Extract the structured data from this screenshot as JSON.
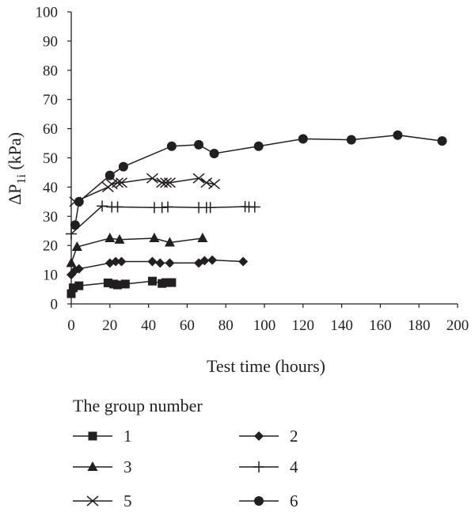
{
  "chart_data": {
    "type": "line",
    "xlabel": "Test time (hours)",
    "ylabel_main": "ΔP",
    "ylabel_sub": "1i",
    "ylabel_unit": " (kPa)",
    "xlim": [
      0,
      200
    ],
    "ylim": [
      0,
      100
    ],
    "xticks": [
      0,
      20,
      40,
      60,
      80,
      100,
      120,
      140,
      160,
      180,
      200
    ],
    "yticks": [
      0,
      10,
      20,
      30,
      40,
      50,
      60,
      70,
      80,
      90,
      100
    ],
    "grid": false,
    "legend_title": "The group number",
    "legend_position": "bottom",
    "series": [
      {
        "name": "1",
        "marker": "square",
        "x": [
          0,
          1,
          4,
          19,
          22,
          24,
          28,
          42,
          47,
          49,
          52
        ],
        "y": [
          3.5,
          5.5,
          6.2,
          7.2,
          6.8,
          6.5,
          6.8,
          7.8,
          7,
          7.3,
          7.3
        ]
      },
      {
        "name": "2",
        "marker": "diamond",
        "x": [
          0,
          2,
          4,
          20,
          23,
          26,
          42,
          46,
          51,
          66,
          69,
          73,
          89
        ],
        "y": [
          10,
          11.5,
          12,
          14,
          14.5,
          14.5,
          14.5,
          14,
          14,
          14,
          14.8,
          15,
          14.5
        ]
      },
      {
        "name": "3",
        "marker": "triangle",
        "x": [
          0,
          3,
          20,
          25,
          43,
          51,
          68
        ],
        "y": [
          14,
          19.5,
          22.5,
          22,
          22.5,
          21,
          22.5
        ]
      },
      {
        "name": "4",
        "marker": "plus",
        "x": [
          0,
          16,
          21,
          24,
          43,
          47,
          50,
          66,
          70,
          72,
          90,
          92,
          95
        ],
        "y": [
          24,
          33.5,
          33.2,
          33.2,
          33,
          33,
          33.2,
          33,
          33,
          33,
          33.3,
          33.2,
          33.2
        ]
      },
      {
        "name": "5",
        "marker": "x",
        "x": [
          2,
          19,
          21,
          24,
          26,
          42,
          47,
          49,
          51,
          66,
          70,
          74
        ],
        "y": [
          35,
          40,
          41,
          41.5,
          41.5,
          43,
          41.5,
          41.5,
          41.5,
          43,
          41.5,
          41
        ]
      },
      {
        "name": "6",
        "marker": "circle",
        "x": [
          2,
          4,
          20,
          27,
          52,
          66,
          74,
          97,
          120,
          145,
          169,
          192
        ],
        "y": [
          27,
          35,
          44,
          47,
          54,
          54.5,
          51.5,
          54,
          56.5,
          56.2,
          57.8,
          55.8
        ]
      }
    ]
  }
}
